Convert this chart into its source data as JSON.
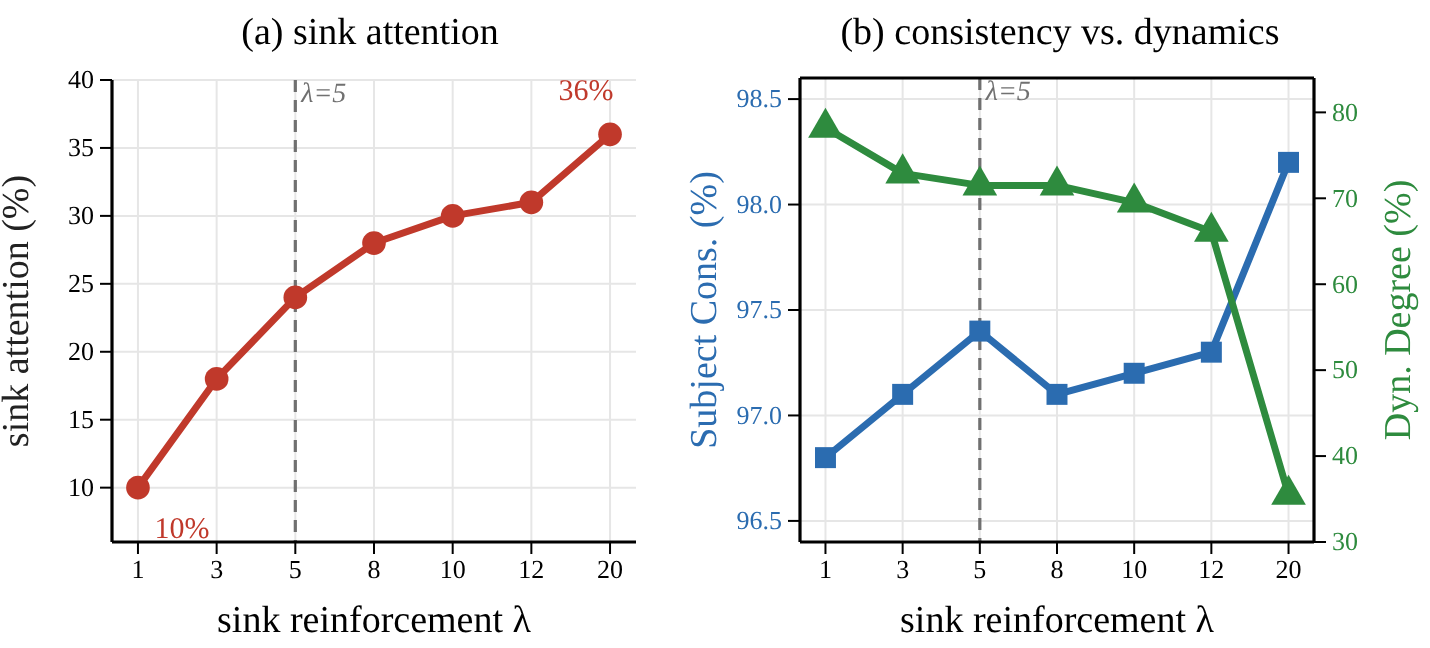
{
  "chart_data": [
    {
      "type": "line",
      "title": "(a) sink attention",
      "xlabel": "sink reinforcement λ",
      "ylabel": "sink attention (%)",
      "categories": [
        "1",
        "3",
        "5",
        "8",
        "10",
        "12",
        "20"
      ],
      "series": [
        {
          "color": "#c0392b",
          "values": [
            10,
            18,
            24,
            28,
            30,
            31,
            36
          ]
        }
      ],
      "marker": "circle",
      "ylim": [
        6,
        40
      ],
      "yticks": [
        10,
        15,
        20,
        25,
        30,
        35,
        40
      ],
      "grid": true,
      "ref_lines": [
        {
          "axis": "x",
          "value": "5",
          "label": "λ=5",
          "color": "#707070",
          "line_style": "dashed"
        }
      ],
      "annotations": [
        {
          "text": "10%",
          "x": "1",
          "y": 10
        },
        {
          "text": "36%",
          "x": "20",
          "y": 36
        }
      ]
    },
    {
      "type": "line",
      "title": "(b) consistency vs. dynamics",
      "xlabel": "sink reinforcement λ",
      "ylabel": "Subject Cons. (%)",
      "y2label": "Dyn. Degree (%)",
      "categories": [
        "1",
        "3",
        "5",
        "8",
        "10",
        "12",
        "20"
      ],
      "series": [
        {
          "color": "#2b6cb0",
          "marker": "square",
          "values": [
            96.8,
            97.1,
            97.4,
            97.1,
            97.2,
            97.3,
            98.2
          ]
        },
        {
          "color": "#2e8b3e",
          "marker": "triangle",
          "axis": "y2",
          "values": [
            78.2,
            72.9,
            71.5,
            71.5,
            69.5,
            66.1,
            35.5
          ]
        }
      ],
      "ylim": [
        96.4,
        98.6
      ],
      "yticks": [
        {
          "value": 96.5,
          "label": "96.5"
        },
        {
          "value": 97,
          "label": "97.0"
        },
        {
          "value": 97.5,
          "label": "97.5"
        },
        {
          "value": 98,
          "label": "98.0"
        },
        {
          "value": 98.5,
          "label": "98.5"
        }
      ],
      "y2lim": [
        30,
        84
      ],
      "y2ticks": [
        30,
        40,
        50,
        60,
        70,
        80
      ],
      "grid": true,
      "ref_lines": [
        {
          "axis": "x",
          "value": "5",
          "label": "λ=5",
          "color": "#707070",
          "line_style": "dashed"
        }
      ]
    }
  ]
}
